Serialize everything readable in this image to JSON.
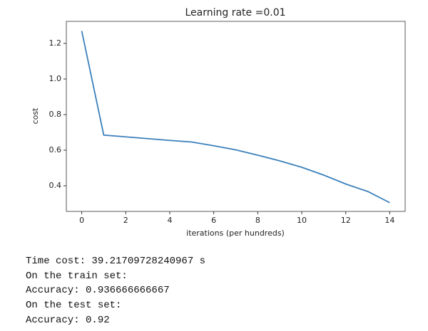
{
  "chart_data": {
    "type": "line",
    "title": "Learning rate =0.01",
    "xlabel": "iterations (per hundreds)",
    "ylabel": "cost",
    "x": [
      0,
      1,
      2,
      3,
      4,
      5,
      6,
      7,
      8,
      9,
      10,
      11,
      12,
      13,
      14
    ],
    "series": [
      {
        "name": null,
        "color": "#3b80bb",
        "values": [
          1.27,
          0.685,
          0.675,
          0.665,
          0.655,
          0.646,
          0.625,
          0.602,
          0.572,
          0.54,
          0.504,
          0.46,
          0.41,
          0.368,
          0.305
        ]
      }
    ],
    "xlim": [
      -0.7,
      14.7
    ],
    "xticks": [
      0,
      2,
      4,
      6,
      8,
      10,
      12,
      14
    ],
    "ylim": [
      0.256,
      1.324
    ],
    "yticks": [
      0.4,
      0.6,
      0.8,
      {
        "value": 1,
        "label": "1.0"
      },
      1.2
    ],
    "grid": false
  },
  "output_lines": [
    "Time cost: 39.21709728240967 s",
    "On the train set:",
    "Accuracy: 0.936666666667",
    "On the test set:",
    "Accuracy: 0.92"
  ]
}
